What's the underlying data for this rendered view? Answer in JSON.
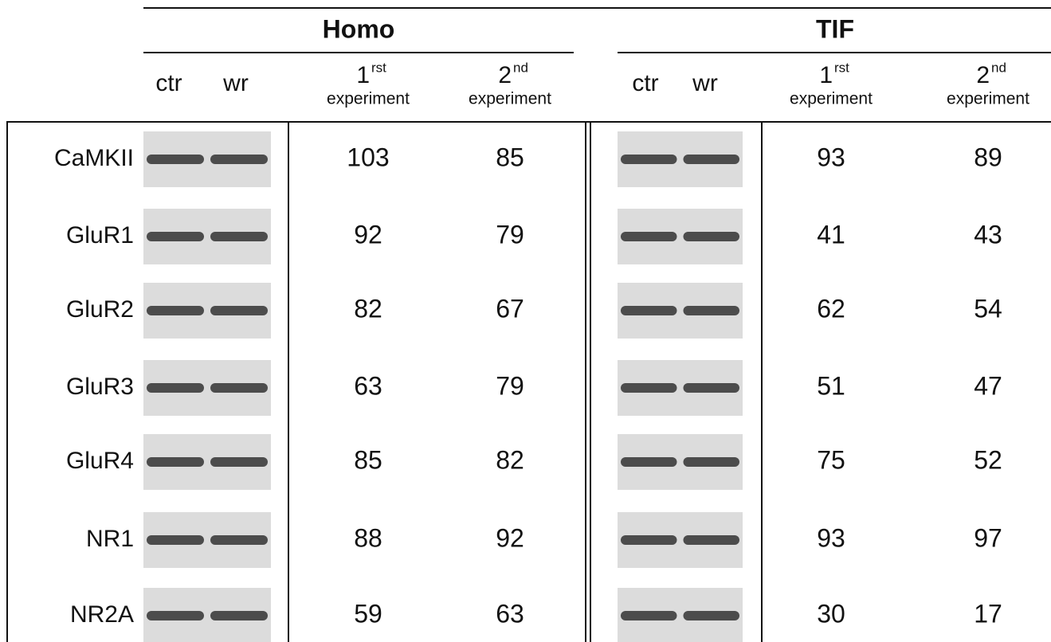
{
  "groups": [
    {
      "title": "Homo",
      "lanes": [
        "ctr",
        "wr"
      ],
      "experiments": [
        {
          "number": "1",
          "suffix": "rst",
          "label": "experiment"
        },
        {
          "number": "2",
          "suffix": "nd",
          "label": "experiment"
        }
      ]
    },
    {
      "title": "TIF",
      "lanes": [
        "ctr",
        "wr"
      ],
      "experiments": [
        {
          "number": "1",
          "suffix": "rst",
          "label": "experiment"
        },
        {
          "number": "2",
          "suffix": "nd",
          "label": "experiment"
        }
      ]
    }
  ],
  "rows": [
    {
      "label": "CaMKII",
      "values": [
        [
          103,
          85
        ],
        [
          93,
          89
        ]
      ]
    },
    {
      "label": "GluR1",
      "values": [
        [
          92,
          79
        ],
        [
          41,
          43
        ]
      ]
    },
    {
      "label": "GluR2",
      "values": [
        [
          82,
          67
        ],
        [
          62,
          54
        ]
      ]
    },
    {
      "label": "GluR3",
      "values": [
        [
          63,
          79
        ],
        [
          51,
          47
        ]
      ]
    },
    {
      "label": "GluR4",
      "values": [
        [
          85,
          82
        ],
        [
          75,
          52
        ]
      ]
    },
    {
      "label": "NR1",
      "values": [
        [
          88,
          92
        ],
        [
          93,
          97
        ]
      ]
    },
    {
      "label": "NR2A",
      "values": [
        [
          59,
          63
        ],
        [
          30,
          17
        ]
      ]
    }
  ]
}
